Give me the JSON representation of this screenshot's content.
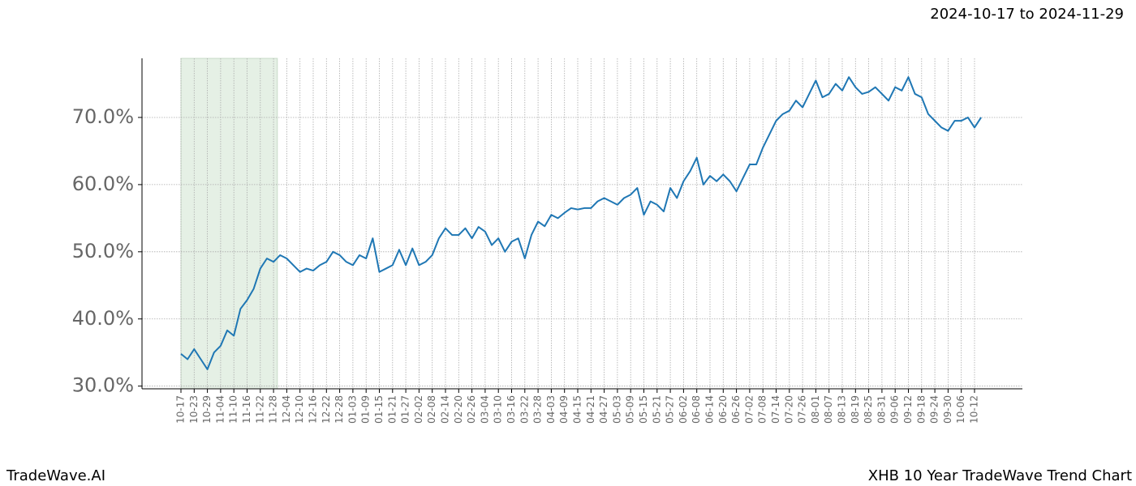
{
  "chart_data": {
    "type": "line",
    "title": "XHB 10 Year TradeWave Trend Chart",
    "subtitle": "2024-10-17 to 2024-11-29",
    "brand": "TradeWave.AI",
    "categories": [
      "10-17",
      null,
      "10-23",
      null,
      "10-29",
      null,
      "11-04",
      null,
      "11-10",
      null,
      "11-16",
      null,
      "11-22",
      null,
      "11-28",
      null,
      "12-04",
      null,
      "12-10",
      null,
      "12-16",
      null,
      "12-22",
      null,
      "12-28",
      null,
      "01-03",
      null,
      "01-09",
      null,
      "01-15",
      null,
      "01-21",
      null,
      "01-27",
      null,
      "02-02",
      null,
      "02-08",
      null,
      "02-14",
      null,
      "02-20",
      null,
      "02-26",
      null,
      "03-04",
      null,
      "03-10",
      null,
      "03-16",
      null,
      "03-22",
      null,
      "03-28",
      null,
      "04-03",
      null,
      "04-09",
      null,
      "04-15",
      null,
      "04-21",
      null,
      "04-27",
      null,
      "05-03",
      null,
      "05-09",
      null,
      "05-15",
      null,
      "05-21",
      null,
      "05-27",
      null,
      "06-02",
      null,
      "06-08",
      null,
      "06-14",
      null,
      "06-20",
      null,
      "06-26",
      null,
      "07-02",
      null,
      "07-08",
      null,
      "07-14",
      null,
      "07-20",
      null,
      "07-26",
      null,
      "08-01",
      null,
      "08-07",
      null,
      "08-13",
      null,
      "08-19",
      null,
      "08-25",
      null,
      "08-31",
      null,
      "09-06",
      null,
      "09-12",
      null,
      "09-18",
      null,
      "09-24",
      null,
      "09-30",
      null,
      "10-06",
      null,
      "10-12",
      null
    ],
    "series": [
      {
        "name": "XHB",
        "color": "#1f77b4",
        "values": [
          34.8,
          34,
          35.5,
          34,
          32.5,
          35,
          36,
          38.3,
          37.5,
          41.5,
          42.8,
          44.5,
          47.5,
          49,
          48.5,
          49.5,
          49,
          48,
          47,
          47.5,
          47.2,
          48,
          48.5,
          50,
          49.5,
          48.5,
          48,
          49.5,
          49,
          52,
          47,
          47.5,
          48,
          50.3,
          48,
          50.5,
          48,
          48.5,
          49.5,
          52,
          53.5,
          52.5,
          52.5,
          53.5,
          52,
          53.7,
          53,
          51,
          52,
          50,
          51.5,
          52,
          49,
          52.5,
          54.5,
          53.8,
          55.5,
          55,
          55.8,
          56.5,
          56.3,
          56.5,
          56.5,
          57.5,
          58,
          57.5,
          57,
          58,
          58.5,
          59.5,
          55.5,
          57.5,
          57,
          56,
          59.5,
          58,
          60.5,
          62,
          64,
          60,
          61.3,
          60.5,
          61.5,
          60.5,
          59,
          61,
          63,
          63,
          65.5,
          67.5,
          69.5,
          70.5,
          71,
          72.5,
          71.5,
          73.5,
          75.5,
          73,
          73.5,
          75,
          74,
          76,
          74.5,
          73.5,
          73.8,
          74.5,
          73.5,
          72.5,
          74.5,
          74,
          76,
          73.5,
          73,
          70.5,
          69.5,
          68.5,
          68,
          69.5,
          69.5,
          70,
          68.5,
          70
        ]
      }
    ],
    "ylim": [
      29.6,
      78.8
    ],
    "yticks": [
      {
        "value": 30,
        "label": "30.0%"
      },
      {
        "value": 40,
        "label": "40.0%"
      },
      {
        "value": 50,
        "label": "50.0%"
      },
      {
        "value": 60,
        "label": "60.0%"
      },
      {
        "value": 70,
        "label": "70.0%"
      }
    ],
    "grid": true,
    "highlight_color": "#e5f0e5"
  }
}
